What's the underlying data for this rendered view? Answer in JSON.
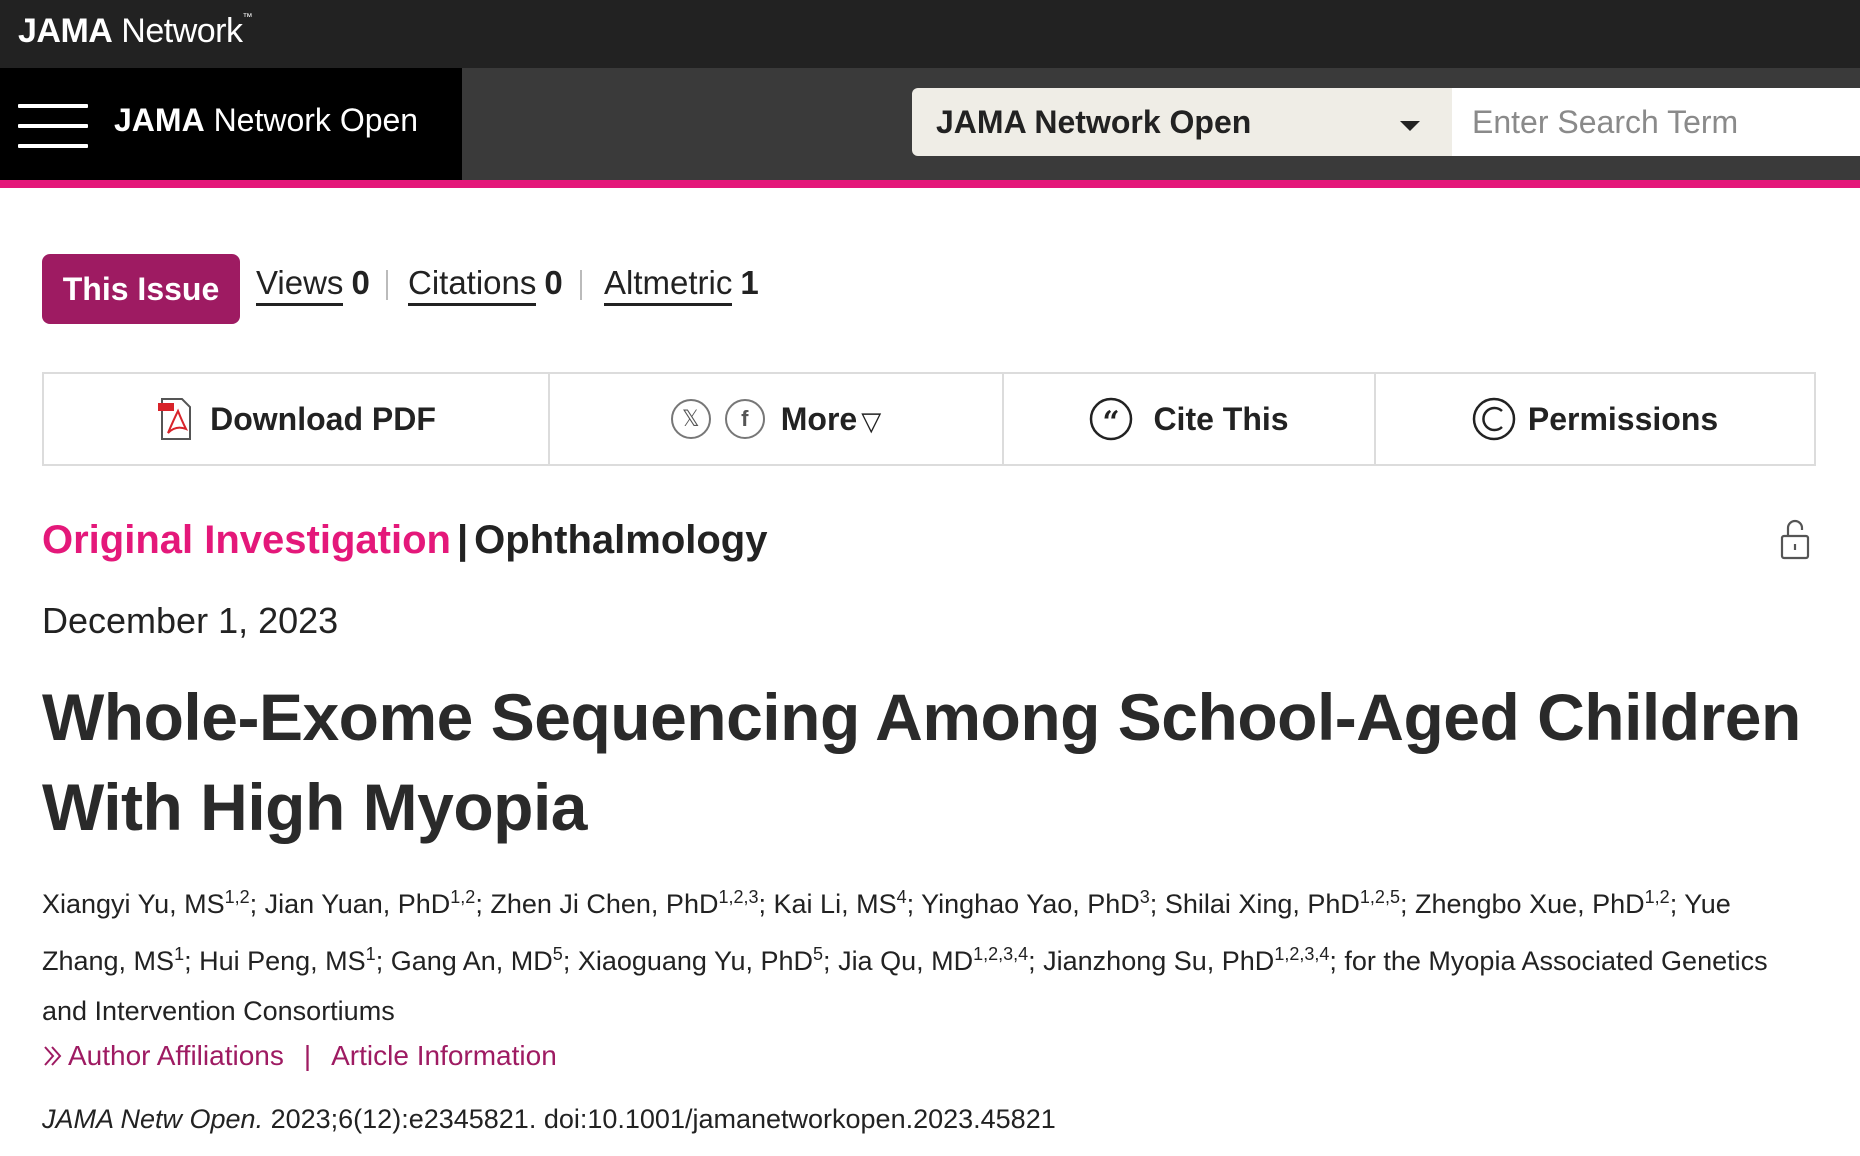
{
  "network": {
    "brand_bold": "JAMA",
    "brand_light": "Network",
    "trademark": "™"
  },
  "journal": {
    "title_bold": "JAMA",
    "title_rest": "Network Open"
  },
  "search": {
    "scope_selected": "JAMA Network Open",
    "placeholder": "Enter Search Term"
  },
  "metrics": {
    "issue_button": "This Issue",
    "views_label": "Views",
    "views_value": "0",
    "citations_label": "Citations",
    "citations_value": "0",
    "altmetric_label": "Altmetric",
    "altmetric_value": "1"
  },
  "tools": {
    "download_pdf": "Download PDF",
    "more": "More",
    "cite_this": "Cite This",
    "permissions": "Permissions"
  },
  "article": {
    "category": "Original Investigation",
    "separator": "|",
    "subject": "Ophthalmology",
    "date": "December 1, 2023",
    "title": "Whole-Exome Sequencing Among School-Aged Children With High Myopia",
    "authors": [
      {
        "name": "Xiangyi Yu, MS",
        "aff": "1,2"
      },
      {
        "name": "Jian Yuan, PhD",
        "aff": "1,2"
      },
      {
        "name": "Zhen Ji Chen, PhD",
        "aff": "1,2,3"
      },
      {
        "name": "Kai Li, MS",
        "aff": "4"
      },
      {
        "name": "Yinghao Yao, PhD",
        "aff": "3"
      },
      {
        "name": "Shilai Xing, PhD",
        "aff": "1,2,5"
      },
      {
        "name": "Zhengbo Xue, PhD",
        "aff": "1,2"
      },
      {
        "name": "Yue Zhang, MS",
        "aff": "1"
      },
      {
        "name": "Hui Peng, MS",
        "aff": "1"
      },
      {
        "name": "Gang An, MD",
        "aff": "5"
      },
      {
        "name": "Xiaoguang Yu, PhD",
        "aff": "5"
      },
      {
        "name": "Jia Qu, MD",
        "aff": "1,2,3,4"
      },
      {
        "name": "Jianzhong Su, PhD",
        "aff": "1,2,3,4"
      }
    ],
    "consortium": "for the Myopia Associated Genetics and Intervention Consortiums",
    "author_affiliations_link": "Author Affiliations",
    "link_separator": "|",
    "article_information_link": "Article Information",
    "citation_journal": "JAMA Netw Open.",
    "citation_rest": "2023;6(12):e2345821. doi:10.1001/jamanetworkopen.2023.45821"
  },
  "colors": {
    "accent_pink": "#e4187a",
    "brand_plum": "#9e1b62",
    "header_dark": "#222222"
  }
}
